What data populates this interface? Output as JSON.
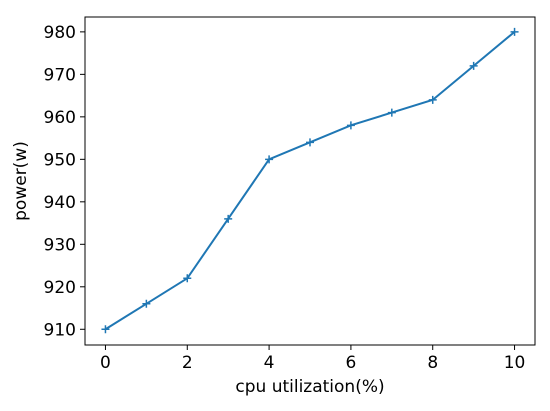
{
  "chart_data": {
    "type": "line",
    "x_label": "cpu utilization(%)",
    "y_label": "power(w)",
    "x": [
      0,
      1,
      2,
      3,
      4,
      5,
      6,
      7,
      8,
      9,
      10
    ],
    "series": [
      {
        "name": "power",
        "color": "#1f77b4",
        "values": [
          910,
          916,
          922,
          936,
          950,
          954,
          958,
          961,
          964,
          972,
          980
        ]
      }
    ],
    "xlim": [
      -0.5,
      10.5
    ],
    "xticks": [
      0,
      2,
      4,
      6,
      8,
      10
    ],
    "ylim": [
      906.3,
      983.5
    ],
    "yticks": [
      910,
      920,
      930,
      940,
      950,
      960,
      970,
      980
    ],
    "marker": "+"
  }
}
